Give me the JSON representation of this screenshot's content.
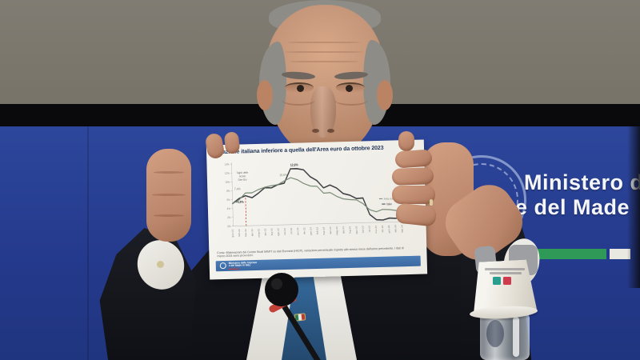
{
  "backdrop": {
    "line1": "Ministero d",
    "line2": "e del Made"
  },
  "paper": {
    "title": "Inflazione italiana inferiore a quella dell'Area euro da ottobre 2023",
    "source": "Fonte: Elaborazioni del Centro Studi MIMIT su dati Eurostat (HICP), variazione percentuale rispetto allo stesso mese dell'anno precedente. I dati di marzo 2024 sono provvisori.",
    "footer": {
      "line1": "Ministero delle Imprese",
      "line2": "e del Made in Italy"
    }
  },
  "chart_data": {
    "type": "line",
    "title": "Inflazione italiana inferiore a quella dell'Area euro da ottobre 2023",
    "categories": [
      "gen-22",
      "feb-22",
      "mar-22",
      "apr-22",
      "mag-22",
      "giu-22",
      "lug-22",
      "ago-22",
      "set-22",
      "ott-22",
      "nov-22",
      "dic-22",
      "gen-23",
      "feb-23",
      "mar-23",
      "apr-23",
      "mag-23",
      "giu-23",
      "lug-23",
      "ago-23",
      "set-23",
      "ott-23",
      "nov-23",
      "dic-23",
      "gen-24",
      "feb-24",
      "mar-24"
    ],
    "series": [
      {
        "name": "Italia",
        "color": "#3f4245",
        "values": [
          5.1,
          6.2,
          6.8,
          6.3,
          7.3,
          8.5,
          8.4,
          9.1,
          9.4,
          12.6,
          12.6,
          12.3,
          10.7,
          9.8,
          8.1,
          8.7,
          8.0,
          6.7,
          6.3,
          5.5,
          5.6,
          1.8,
          0.6,
          0.5,
          0.9,
          0.8,
          1.2
        ]
      },
      {
        "name": "Area euro",
        "color": "#7c8d7a",
        "values": [
          5.1,
          5.9,
          7.4,
          7.4,
          8.1,
          8.6,
          8.9,
          9.1,
          9.9,
          10.6,
          10.1,
          9.2,
          8.6,
          8.5,
          6.9,
          7.0,
          6.1,
          5.5,
          5.3,
          5.2,
          4.3,
          2.9,
          2.4,
          2.9,
          2.8,
          2.6,
          2.4
        ]
      }
    ],
    "ylim": [
      0,
      14
    ],
    "yticks": [
      0,
      2,
      4,
      6,
      8,
      10,
      12,
      14
    ],
    "ytick_suffix": "%",
    "grid": false,
    "legend_position": "right-inside",
    "dashed_marker": {
      "index": 2,
      "to_value": 6.8,
      "color": "#c0392b"
    },
    "note": {
      "lines": [
        "Taglio delle",
        "accise",
        "Gen-Giu"
      ],
      "x": 1.6,
      "value": 11.8
    },
    "annotations": [
      {
        "text": "12,6%",
        "x": 9.6,
        "value": 12.6,
        "dy": -3,
        "bold": true,
        "color": "#3f4245"
      },
      {
        "text": "10,6%",
        "x": 7.9,
        "value": 10.6,
        "dy": -2,
        "bold": false,
        "color": "#7c8d7a"
      },
      {
        "text": "7,4%",
        "x": 0.8,
        "value": 7.7,
        "dy": -2,
        "bold": false,
        "color": "#7c8d7a"
      },
      {
        "text": "+6,8%",
        "x": 1.1,
        "value": 6.0,
        "dy": 4,
        "bold": true,
        "color": "#3f4245"
      },
      {
        "text": "2,4%",
        "x": 26.15,
        "value": 2.6,
        "dy": 0,
        "anchor": "start",
        "color": "#7c8d7a"
      },
      {
        "text": "1,2%",
        "x": 26.15,
        "value": 1.0,
        "dy": 1,
        "anchor": "start",
        "color": "#3f4245"
      }
    ],
    "legend": [
      {
        "label": "Area euro",
        "x": 23.2,
        "value": 5.3,
        "color": "#7c8d7a"
      },
      {
        "label": "Italia",
        "x": 23.6,
        "value": 4.1,
        "color": "#3f4245"
      }
    ]
  },
  "colors": {
    "backdrop_blue": "#24398b",
    "wall_grey": "#7d7970",
    "band_black": "#0a0a0c",
    "flag_green": "#2f9a57",
    "footer_blue": "#4272ad",
    "italy_line": "#3f4245",
    "euro_line": "#7c8d7a",
    "dashed_red": "#c0392b"
  }
}
